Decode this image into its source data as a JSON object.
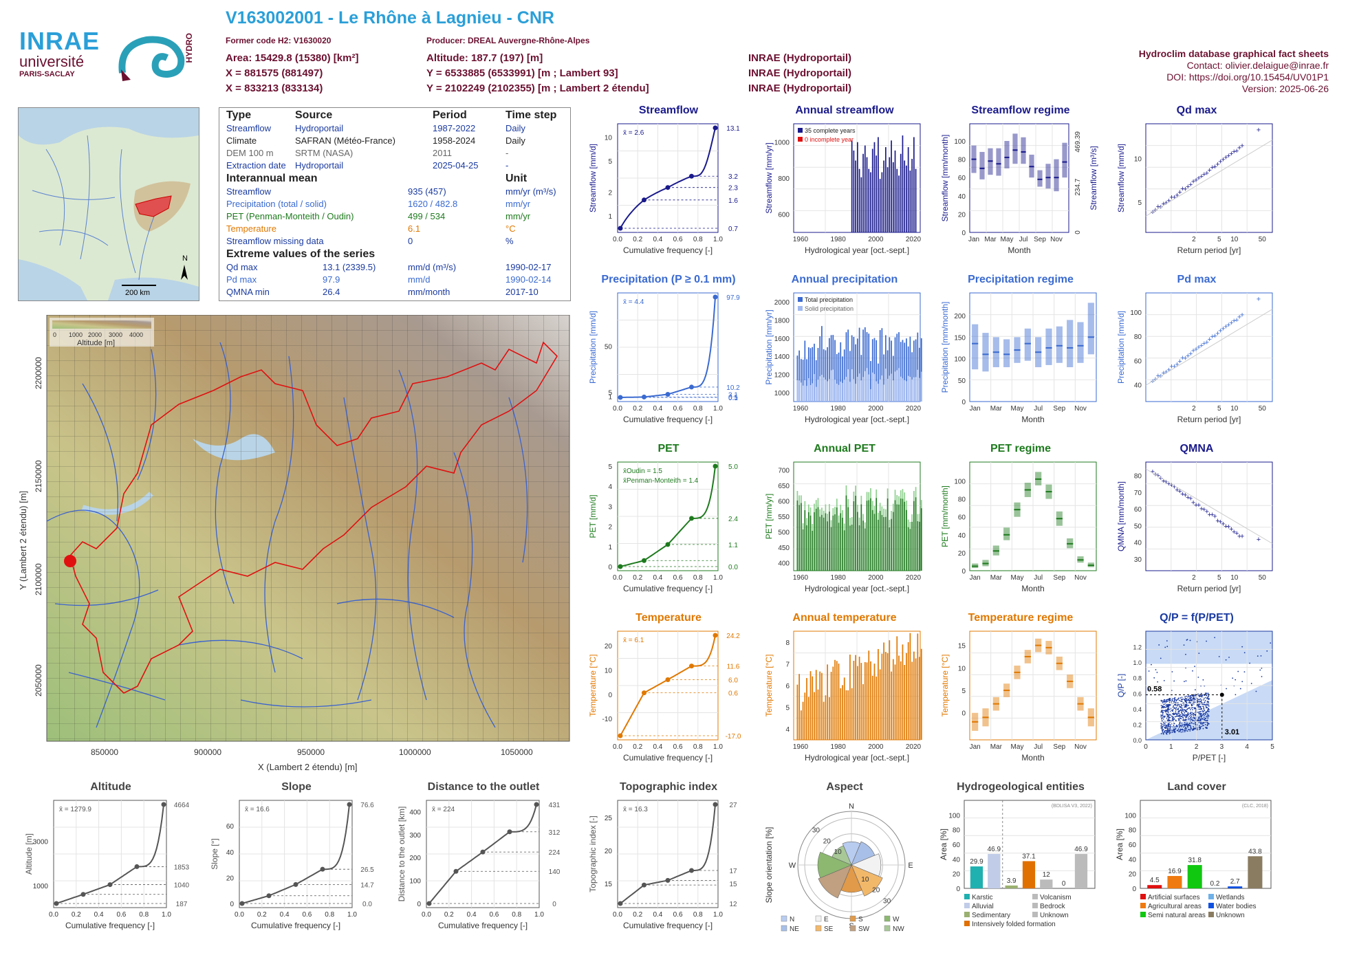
{
  "header": {
    "title": "V163002001 - Le Rhône à Lagnieu - CNR",
    "former_code": "Former code H2: V1630020",
    "producer": "Producer: DREAL Auvergne-Rhône-Alpes",
    "area": "Area: 15429.8 (15380) [km²]",
    "altitude": "Altitude: 187.7 (197) [m]",
    "x93": "X = 881575 (881497)",
    "y93": "Y = 6533885 (6533991) [m ; Lambert 93]",
    "x2": "X = 833213 (833134)",
    "y2": "Y = 2102249 (2102355) [m ; Lambert 2 étendu]",
    "src1": "INRAE (Hydroportail)",
    "src2": "INRAE (Hydroportail)",
    "src3": "INRAE (Hydroportail)"
  },
  "logos": {
    "inrae": "INRAE",
    "univ": "université",
    "paris": "PARIS-SACLAY",
    "hydro": "HYDRO"
  },
  "right_info": {
    "title": "Hydroclim database graphical fact sheets",
    "contact": "Contact: olivier.delaigue@inrae.fr",
    "doi": "DOI: https://doi.org/10.15454/UV01P1",
    "version": "Version: 2025-06-26"
  },
  "table": {
    "h_type": "Type",
    "h_source": "Source",
    "h_period": "Period",
    "h_step": "Time step",
    "rows": [
      [
        "Streamflow",
        "Hydroportail",
        "1987-2022",
        "Daily"
      ],
      [
        "Climate",
        "SAFRAN (Météo-France)",
        "1958-2024",
        "Daily"
      ],
      [
        "DEM 100 m",
        "SRTM (NASA)",
        "2011",
        "-"
      ],
      [
        "Extraction date",
        "Hydroportail",
        "2025-04-25",
        "-"
      ]
    ],
    "h_mean": "Interannual mean",
    "h_unit": "Unit",
    "mean_rows": [
      [
        "Streamflow",
        "935 (457)",
        "mm/yr (m³/s)"
      ],
      [
        "Precipitation (total / solid)",
        "1620 / 482.8",
        "mm/yr"
      ],
      [
        "PET (Penman-Monteith / Oudin)",
        "499 / 534",
        "mm/yr"
      ],
      [
        "Temperature",
        "6.1",
        "°C"
      ],
      [
        "Streamflow missing data",
        "0",
        "%"
      ]
    ],
    "h_extreme": "Extreme values of the series",
    "ext_rows": [
      [
        "Qd max",
        "13.1 (2339.5)",
        "mm/d (m³/s)",
        "1990-02-17"
      ],
      [
        "Pd max",
        "97.9",
        "mm/d",
        "1990-02-14"
      ],
      [
        "QMNA min",
        "26.4",
        "mm/month",
        "2017-10"
      ]
    ]
  },
  "minimap": {
    "scale": "200 km",
    "north": "N"
  },
  "map": {
    "legend_title": "Altitude [m]",
    "legend_ticks": [
      "0",
      "1000",
      "2000",
      "3000",
      "4000"
    ],
    "xlabel": "X (Lambert 2 étendu) [m]",
    "ylabel": "Y (Lambert 2 étendu) [m]",
    "xticks": [
      "850000",
      "900000",
      "950000",
      "1000000",
      "1050000"
    ],
    "yticks": [
      "2200000",
      "2150000",
      "2100000",
      "2050000"
    ]
  },
  "chart_data": [
    {
      "id": "streamflow",
      "type": "line",
      "title": "Streamflow",
      "xlabel": "Cumulative frequency [-]",
      "ylabel": "Streamflow [mm/d]",
      "mean": "x̄ = 2.6",
      "log": true,
      "color": "#1a1a8c",
      "right_ticks": [
        "13.1",
        "3.2",
        "2.3",
        "1.6",
        "0.7"
      ],
      "points_x": [
        0,
        0.25,
        0.5,
        0.75,
        1
      ],
      "points_y": [
        0.7,
        1.6,
        2.3,
        3.2,
        13.1
      ],
      "yticks": [
        "1",
        "2",
        "5",
        "10"
      ],
      "xticks": [
        "0.0",
        "0.2",
        "0.4",
        "0.6",
        "0.8",
        "1.0"
      ]
    },
    {
      "id": "annual_streamflow",
      "type": "bar",
      "title": "Annual streamflow",
      "xlabel": "Hydrological year [oct.-sept.]",
      "ylabel": "Streamflow [mm/yr]",
      "color": "#1a1a8c",
      "legend": [
        "35 complete years",
        "0 incomplete year"
      ],
      "xticks": [
        "1960",
        "1980",
        "2000",
        "2020"
      ],
      "yticks": [
        "600",
        "800",
        "1000"
      ],
      "x_start": 1987,
      "values": [
        1050,
        990,
        930,
        1040,
        880,
        830,
        970,
        1020,
        950,
        880,
        860,
        1000,
        1040,
        960,
        1070,
        820,
        860,
        930,
        1010,
        890,
        950,
        1050,
        920,
        990,
        880,
        840,
        970,
        1080,
        930,
        900,
        1010,
        870,
        940,
        1070,
        880
      ]
    },
    {
      "id": "streamflow_regime",
      "type": "box",
      "title": "Streamflow regime",
      "xlabel": "Month",
      "ylabel": "Streamflow [mm/month]",
      "right_label": "Streamflow [m³/s]",
      "color": "#1a1a8c",
      "months": [
        "Jan",
        "Feb",
        "Mar",
        "Apr",
        "May",
        "Jun",
        "Jul",
        "Aug",
        "Sep",
        "Oct",
        "Nov",
        "Dec"
      ],
      "xticks": [
        "Jan",
        "Mar",
        "May",
        "Jul",
        "Sep",
        "Nov"
      ],
      "medians": [
        80,
        70,
        78,
        75,
        82,
        90,
        88,
        72,
        58,
        60,
        60,
        77
      ],
      "lo": [
        65,
        58,
        63,
        62,
        70,
        75,
        75,
        60,
        50,
        48,
        45,
        60
      ],
      "hi": [
        95,
        88,
        92,
        92,
        100,
        108,
        104,
        85,
        68,
        75,
        80,
        98
      ],
      "yticks": [
        "0",
        "20",
        "40",
        "60",
        "80",
        "100"
      ],
      "right_ticks": [
        "0",
        "234.7",
        "469.39"
      ]
    },
    {
      "id": "qd_max",
      "type": "scatter",
      "title": "Qd max",
      "xlabel": "Return period [yr]",
      "ylabel": "Streamflow [mm/d]",
      "color": "#1a1a8c",
      "xticks": [
        "2",
        "5",
        "10",
        "50"
      ],
      "yticks": [
        "5",
        "10"
      ]
    },
    {
      "id": "precipitation",
      "type": "line",
      "title": "Precipitation (P ≥ 0.1 mm)",
      "xlabel": "Cumulative frequency [-]",
      "ylabel": "Precipitation [mm/d]",
      "mean": "x̄ = 4.4",
      "color": "#3a6ad0",
      "right_ticks": [
        "97.9",
        "10.2",
        "3.1",
        "0.5",
        "0.1"
      ],
      "points_x": [
        0,
        0.25,
        0.5,
        0.75,
        1
      ],
      "points_y": [
        0.1,
        0.5,
        3.1,
        10.2,
        97.9
      ],
      "yticks": [
        "1",
        "5",
        "50"
      ],
      "xticks": [
        "0.0",
        "0.2",
        "0.4",
        "0.6",
        "0.8",
        "1.0"
      ]
    },
    {
      "id": "annual_precipitation",
      "type": "bar",
      "title": "Annual precipitation",
      "xlabel": "Hydrological year [oct.-sept.]",
      "ylabel": "Precipitation [mm/yr]",
      "color": "#3a6ad0",
      "color2": "#9fb8f0",
      "legend": [
        "Total precipitation",
        "Solid precipitation"
      ],
      "xticks": [
        "1960",
        "1980",
        "2000",
        "2020"
      ],
      "yticks": [
        "1000",
        "1200",
        "1400",
        "1600",
        "1800",
        "2000"
      ]
    },
    {
      "id": "precipitation_regime",
      "type": "box",
      "title": "Precipitation regime",
      "xlabel": "Month",
      "ylabel": "Precipitation [mm/month]",
      "color": "#3a6ad0",
      "months": [
        "Jan",
        "Feb",
        "Mar",
        "Apr",
        "May",
        "Jun",
        "Jul",
        "Aug",
        "Sep",
        "Oct",
        "Nov",
        "Dec"
      ],
      "xticks": [
        "Jan",
        "Mar",
        "May",
        "Jul",
        "Sep",
        "Nov"
      ],
      "medians": [
        135,
        110,
        115,
        110,
        120,
        135,
        115,
        125,
        130,
        125,
        130,
        150
      ],
      "lo": [
        75,
        70,
        80,
        80,
        90,
        95,
        80,
        85,
        90,
        80,
        90,
        110
      ],
      "hi": [
        180,
        160,
        150,
        145,
        150,
        170,
        150,
        170,
        175,
        190,
        185,
        230
      ],
      "yticks": [
        "0",
        "50",
        "100",
        "150",
        "200"
      ]
    },
    {
      "id": "pd_max",
      "type": "scatter",
      "title": "Pd max",
      "xlabel": "Return period [yr]",
      "ylabel": "Precipitation [mm/d]",
      "color": "#3a6ad0",
      "xticks": [
        "2",
        "5",
        "10",
        "50"
      ],
      "yticks": [
        "40",
        "60",
        "80",
        "100"
      ]
    },
    {
      "id": "pet",
      "type": "line",
      "title": "PET",
      "xlabel": "Cumulative frequency [-]",
      "ylabel": "PET [mm/d]",
      "mean": "x̄Oudin = 1.5",
      "mean2": "x̄Penman-Monteith = 1.4",
      "color": "#1e7a1e",
      "right_ticks": [
        "5.0",
        "2.4",
        "1.1",
        "0.0"
      ],
      "points_x": [
        0,
        0.25,
        0.5,
        0.75,
        1
      ],
      "points_y": [
        0,
        0.3,
        1.1,
        2.4,
        5
      ],
      "yticks": [
        "0",
        "1",
        "2",
        "3",
        "4",
        "5",
        "6"
      ],
      "xticks": [
        "0.0",
        "0.2",
        "0.4",
        "0.6",
        "0.8",
        "1.0"
      ]
    },
    {
      "id": "annual_pet",
      "type": "bar",
      "title": "Annual PET",
      "xlabel": "Hydrological year [oct.-sept.]",
      "ylabel": "PET [mm/yr]",
      "color": "#1e7a1e",
      "color2": "#8fd08f",
      "xticks": [
        "1960",
        "1980",
        "2000",
        "2020"
      ],
      "yticks": [
        "400",
        "450",
        "500",
        "550",
        "600",
        "650",
        "700"
      ]
    },
    {
      "id": "pet_regime",
      "type": "box",
      "title": "PET regime",
      "xlabel": "Month",
      "ylabel": "PET [mm/month]",
      "color": "#1e7a1e",
      "months": [
        "Jan",
        "Feb",
        "Mar",
        "Apr",
        "May",
        "Jun",
        "Jul",
        "Aug",
        "Sep",
        "Oct",
        "Nov",
        "Dec"
      ],
      "xticks": [
        "Jan",
        "Mar",
        "May",
        "Jul",
        "Sep",
        "Nov"
      ],
      "medians": [
        5,
        8,
        22,
        40,
        68,
        90,
        102,
        88,
        58,
        30,
        12,
        6
      ],
      "lo": [
        3,
        5,
        17,
        34,
        60,
        82,
        95,
        80,
        50,
        25,
        9,
        4
      ],
      "hi": [
        8,
        12,
        28,
        48,
        76,
        98,
        110,
        96,
        66,
        36,
        16,
        9
      ],
      "yticks": [
        "0",
        "20",
        "40",
        "60",
        "80",
        "100"
      ]
    },
    {
      "id": "qmna",
      "type": "scatter",
      "title": "QMNA",
      "xlabel": "Return period [yr]",
      "ylabel": "QMNA [mm/month]",
      "color": "#1a1a8c",
      "xticks": [
        "2",
        "5",
        "10",
        "50"
      ],
      "yticks": [
        "30",
        "40",
        "50",
        "60",
        "70",
        "80"
      ]
    },
    {
      "id": "temperature",
      "type": "line",
      "title": "Temperature",
      "xlabel": "Cumulative frequency [-]",
      "ylabel": "Temperature [°C]",
      "mean": "x̄ = 6.1",
      "color": "#e07800",
      "right_ticks": [
        "24.2",
        "11.6",
        "6.0",
        "0.6",
        "-17.0"
      ],
      "points_x": [
        0,
        0.25,
        0.5,
        0.75,
        1
      ],
      "points_y": [
        -17,
        0.6,
        6,
        11.6,
        24.2
      ],
      "yticks": [
        "-10",
        "0",
        "10",
        "20"
      ],
      "xticks": [
        "0.0",
        "0.2",
        "0.4",
        "0.6",
        "0.8",
        "1.0"
      ]
    },
    {
      "id": "annual_temperature",
      "type": "bar",
      "title": "Annual temperature",
      "xlabel": "Hydrological year [oct.-sept.]",
      "ylabel": "Temperature [°C]",
      "color": "#e07800",
      "xticks": [
        "1960",
        "1980",
        "2000",
        "2020"
      ],
      "yticks": [
        "4",
        "5",
        "6",
        "7",
        "8"
      ]
    },
    {
      "id": "temperature_regime",
      "type": "box",
      "title": "Temperature regime",
      "xlabel": "Month",
      "ylabel": "Temperature [°C]",
      "color": "#e07800",
      "months": [
        "Jan",
        "Feb",
        "Mar",
        "Apr",
        "May",
        "Jun",
        "Jul",
        "Aug",
        "Sep",
        "Oct",
        "Nov",
        "Dec"
      ],
      "xticks": [
        "Jan",
        "Mar",
        "May",
        "Jul",
        "Sep",
        "Nov"
      ],
      "medians": [
        -2,
        -1,
        2,
        5,
        9,
        12.5,
        15,
        14.5,
        11,
        7,
        2,
        -1
      ],
      "lo": [
        -4,
        -3,
        0.5,
        3.5,
        7.5,
        11,
        13.5,
        13,
        9.5,
        5.5,
        0.5,
        -3
      ],
      "hi": [
        0,
        1,
        3.5,
        6.5,
        10.5,
        14,
        16.5,
        16,
        12.5,
        8.5,
        3.5,
        1
      ],
      "yticks": [
        "0",
        "5",
        "10",
        "15"
      ]
    },
    {
      "id": "qp",
      "type": "scatter",
      "title": "Q/P = f(P/PET)",
      "xlabel": "P/PET [-]",
      "ylabel": "Q/P [-]",
      "color": "#1a3aa0",
      "annot_y": "0.58",
      "annot_x": "3.01",
      "xticks": [
        "0",
        "1",
        "2",
        "3",
        "4",
        "5"
      ],
      "yticks": [
        "0.0",
        "0.2",
        "0.4",
        "0.6",
        "0.8",
        "1.0",
        "1.2"
      ]
    },
    {
      "id": "altitude",
      "type": "line",
      "title": "Altitude",
      "xlabel": "Cumulative frequency [-]",
      "ylabel": "Altitude [m]",
      "mean": "x̄ = 1279.9",
      "color": "#555",
      "right_ticks": [
        "4664",
        "1853",
        "1040",
        "187"
      ],
      "points_x": [
        0,
        0.25,
        0.5,
        0.75,
        1
      ],
      "points_y": [
        187,
        600,
        1040,
        1853,
        4664
      ],
      "yticks": [
        "1000",
        "3000"
      ],
      "xticks": [
        "0.0",
        "0.2",
        "0.4",
        "0.6",
        "0.8",
        "1.0"
      ]
    },
    {
      "id": "slope",
      "type": "line",
      "title": "Slope",
      "xlabel": "Cumulative frequency [-]",
      "ylabel": "Slope [°]",
      "mean": "x̄ = 16.6",
      "color": "#555",
      "right_ticks": [
        "76.6",
        "26.5",
        "14.7",
        "0.0"
      ],
      "points_x": [
        0,
        0.25,
        0.5,
        0.75,
        1
      ],
      "points_y": [
        0,
        6,
        14.7,
        26.5,
        76.6
      ],
      "yticks": [
        "0",
        "20",
        "40",
        "60",
        "80"
      ],
      "xticks": [
        "0.0",
        "0.2",
        "0.4",
        "0.6",
        "0.8",
        "1.0"
      ]
    },
    {
      "id": "distance",
      "type": "line",
      "title": "Distance to the outlet",
      "xlabel": "Cumulative frequency [-]",
      "ylabel": "Distance to the outlet [km]",
      "mean": "x̄ = 224",
      "color": "#555",
      "right_ticks": [
        "431",
        "312",
        "224",
        "140",
        "0"
      ],
      "points_x": [
        0,
        0.25,
        0.5,
        0.75,
        1
      ],
      "points_y": [
        0,
        140,
        224,
        312,
        431
      ],
      "yticks": [
        "0",
        "100",
        "200",
        "300",
        "400"
      ],
      "xticks": [
        "0.0",
        "0.2",
        "0.4",
        "0.6",
        "0.8",
        "1.0"
      ]
    },
    {
      "id": "topo",
      "type": "line",
      "title": "Topographic index",
      "xlabel": "Cumulative frequency [-]",
      "ylabel": "Topographic index [-]",
      "mean": "x̄ = 16.3",
      "color": "#555",
      "right_ticks": [
        "27",
        "17",
        "15",
        "12"
      ],
      "points_x": [
        0,
        0.25,
        0.5,
        0.75,
        1
      ],
      "points_y": [
        12,
        14.8,
        15.5,
        17,
        27
      ],
      "yticks": [
        "15",
        "20",
        "25"
      ],
      "xticks": [
        "0.0",
        "0.2",
        "0.4",
        "0.6",
        "0.8",
        "1.0"
      ]
    },
    {
      "id": "aspect",
      "type": "pie",
      "title": "Aspect",
      "ylabel": "Slope orientation [%]",
      "directions": [
        "N",
        "NE",
        "E",
        "SE",
        "S",
        "SW",
        "W",
        "NW"
      ],
      "values": [
        11,
        12,
        14,
        16,
        13,
        17,
        16,
        10
      ],
      "rings": [
        "10",
        "20",
        "30"
      ],
      "dirs_shown": [
        "N",
        "E",
        "S",
        "W"
      ],
      "legend": [
        "N",
        "E",
        "S",
        "W",
        "NE",
        "SE",
        "SW",
        "NW"
      ]
    },
    {
      "id": "hydrogeo",
      "type": "bar",
      "title": "Hydrogeological entities",
      "ylabel": "Area [%]",
      "note": "(BDLISA V3, 2022)",
      "categories": [
        "Karstic",
        "Alluvial",
        "Sedimentary",
        "Intensively folded formation",
        "Volcanism",
        "Bedrock",
        "Unknown"
      ],
      "values": [
        29.9,
        46.9,
        3.9,
        37.1,
        12,
        0,
        46.9
      ],
      "colors": [
        "#1fb0b0",
        "#c0cce8",
        "#9ab070",
        "#e07000",
        "#bbbbbb",
        "#bbbbbb",
        "#bbbbbb"
      ],
      "yticks": [
        "0",
        "20",
        "40",
        "60",
        "80",
        "100"
      ]
    },
    {
      "id": "landcover",
      "type": "bar",
      "title": "Land cover",
      "ylabel": "Area [%]",
      "note": "(CLC, 2018)",
      "categories": [
        "Artificial surfaces",
        "Agricultural areas",
        "Semi natural areas",
        "Wetlands",
        "Water bodies",
        "Unknown"
      ],
      "values": [
        4.5,
        16.9,
        31.8,
        0.2,
        2.7,
        43.8
      ],
      "colors": [
        "#e01010",
        "#ef7a10",
        "#10c810",
        "#6fb0e8",
        "#1050e0",
        "#8a7c60"
      ],
      "yticks": [
        "0",
        "20",
        "40",
        "60",
        "80",
        "100"
      ]
    }
  ]
}
